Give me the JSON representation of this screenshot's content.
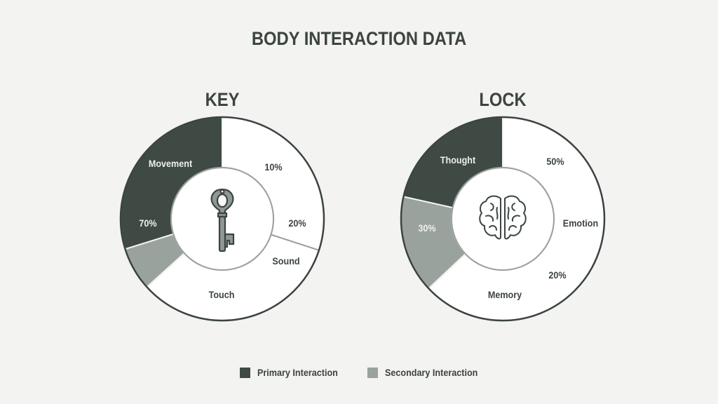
{
  "title": "BODY INTERACTION DATA",
  "colors": {
    "primary": "#3f4a45",
    "secondary": "#9aa29d",
    "empty": "#ffffff",
    "outline": "#3b4440",
    "background": "#f3f3f1"
  },
  "chart_data": [
    {
      "type": "pie",
      "variant": "donut",
      "title": "KEY",
      "center_icon": "key-icon",
      "segments": [
        {
          "category": "empty",
          "share": 0.3
        },
        {
          "category": "empty",
          "share": 0.333
        },
        {
          "category": "secondary",
          "share": 0.069
        },
        {
          "category": "primary",
          "share": 0.298
        }
      ],
      "labels": [
        "Movement",
        "70%",
        "10%",
        "20%",
        "Sound",
        "Touch"
      ]
    },
    {
      "type": "pie",
      "variant": "donut",
      "title": "LOCK",
      "center_icon": "brain-icon",
      "segments": [
        {
          "category": "empty",
          "share": 0.63
        },
        {
          "category": "secondary",
          "share": 0.155
        },
        {
          "category": "primary",
          "share": 0.215
        }
      ],
      "labels": [
        "Thought",
        "30%",
        "50%",
        "Emotion",
        "20%",
        "Memory"
      ]
    }
  ],
  "legend": [
    {
      "label": "Primary Interaction",
      "category": "primary"
    },
    {
      "label": "Secondary Interaction",
      "category": "secondary"
    }
  ]
}
